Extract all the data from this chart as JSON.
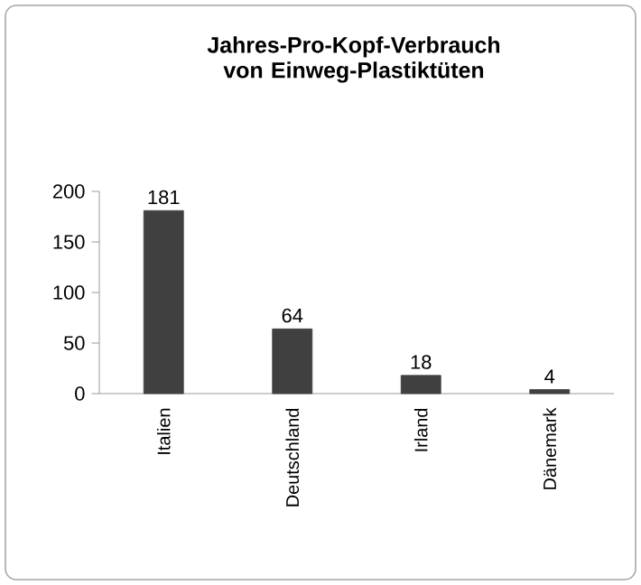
{
  "chart_data": {
    "type": "bar",
    "title": "Jahres-Pro-Kopf-Verbrauch von Einweg-Plastiktüten",
    "categories": [
      "Italien",
      "Deutschland",
      "Irland",
      "Dänemark"
    ],
    "values": [
      181,
      64,
      18,
      4
    ],
    "color": "#404040",
    "ylim": [
      0,
      200
    ],
    "yticks": [
      0,
      50,
      100,
      150,
      200
    ],
    "data_labels": true
  }
}
